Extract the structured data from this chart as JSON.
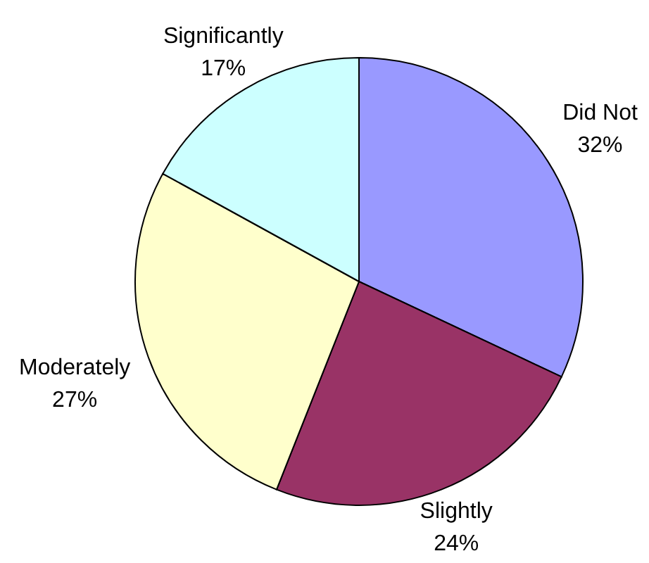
{
  "chart_data": {
    "type": "pie",
    "categories": [
      "Did Not",
      "Slightly",
      "Moderately",
      "Significantly"
    ],
    "values": [
      32,
      24,
      27,
      17
    ],
    "colors": [
      "#9999ff",
      "#993366",
      "#ffffcc",
      "#ccffff"
    ],
    "value_labels": [
      "32%",
      "24%",
      "27%",
      "17%"
    ]
  }
}
